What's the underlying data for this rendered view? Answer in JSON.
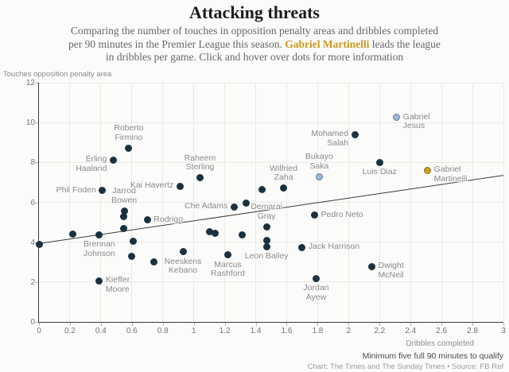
{
  "header": {
    "title": "Attacking threats",
    "subtitle_before": "Comparing the number of touches in opposition penalty areas and dribbles completed per 90 minutes in the Premier League this season. ",
    "subtitle_highlight": "Gabriel Martinelli",
    "subtitle_after": " leads the league in dribbles per game. Click and hover over dots for more information",
    "highlight_color": "#c8991e"
  },
  "footer": {
    "note": "Minimum five full 90 minutes to qualify",
    "credit": "Chart: The Times and The Sunday Times • Source: FB Ref"
  },
  "chart_data": {
    "type": "scatter",
    "xlabel": "Dribbles completed",
    "ylabel": "Touches opposition penalty area",
    "xlim": [
      0,
      3
    ],
    "ylim": [
      0,
      12
    ],
    "x_ticks": [
      "0",
      "0.2",
      "0.4",
      "0.6",
      "0.8",
      "1",
      "1.2",
      "1.4",
      "1.6",
      "1.8",
      "2",
      "2.2",
      "2.4",
      "2.6",
      "2.8",
      "3"
    ],
    "y_ticks": [
      "0",
      "2",
      "4",
      "6",
      "8",
      "10",
      "12"
    ],
    "grid": true,
    "trend_line": {
      "x1": 0,
      "y1": 3.93,
      "x2": 3,
      "y2": 7.35
    },
    "colors": {
      "dot_default": "#1a3240",
      "dot_blue_fill": "#9db8d2",
      "dot_blue_border": "#5f7d99",
      "dot_gold_fill": "#c9a227",
      "dot_gold_border": "#8a6d1a",
      "trend_line": "#3c3c3c",
      "grid": "#e9e9e6",
      "axis": "#3a3a3a",
      "label_text": "#8a8a8a"
    },
    "points": [
      {
        "player": "Roberto Firmino",
        "x": 0.58,
        "y": 8.73,
        "dot": "dark",
        "label_pos": "above",
        "label_lines": [
          "Roberto",
          "Firmino"
        ]
      },
      {
        "player": "Erling Haaland",
        "x": 0.48,
        "y": 8.12,
        "dot": "dark",
        "label_pos": "left",
        "label_lines": [
          "Erling",
          "Haaland"
        ]
      },
      {
        "player": "Phil Foden",
        "x": 0.41,
        "y": 6.58,
        "dot": "dark",
        "label_pos": "left",
        "label_lines": [
          "Phil Foden"
        ]
      },
      {
        "player": "Jarrod Bowen",
        "x": 0.55,
        "y": 5.58,
        "dot": "dark",
        "label_pos": "above",
        "label_lines": [
          "Jarrod",
          "Bowen"
        ]
      },
      {
        "player": "Rodrigo",
        "x": 0.7,
        "y": 5.12,
        "dot": "dark",
        "label_pos": "right",
        "label_lines": [
          "Rodrigo"
        ]
      },
      {
        "player": "Kai Havertz",
        "x": 0.91,
        "y": 6.8,
        "dot": "dark",
        "label_pos": "left",
        "label_lines": [
          "Kai Havertz"
        ]
      },
      {
        "player": "Raheem Sterling",
        "x": 1.04,
        "y": 7.22,
        "dot": "dark",
        "label_pos": "above",
        "label_lines": [
          "Raheem",
          "Sterling"
        ]
      },
      {
        "player": "Brennan Johnson",
        "x": 0.39,
        "y": 4.38,
        "dot": "dark",
        "label_pos": "below",
        "label_lines": [
          "Brennan",
          "Johnson"
        ]
      },
      {
        "player": "Kieffer Moore",
        "x": 0.39,
        "y": 2.06,
        "dot": "dark",
        "label_pos": "right",
        "label_lines": [
          "Kieffer",
          "Moore"
        ]
      },
      {
        "player": "Neeskens Kebano",
        "x": 0.93,
        "y": 3.52,
        "dot": "dark",
        "label_pos": "below",
        "label_lines": [
          "Neeskens",
          "Kebano"
        ]
      },
      {
        "player": "Marcus Rashford",
        "x": 1.22,
        "y": 3.35,
        "dot": "dark",
        "label_pos": "below",
        "label_lines": [
          "Marcus",
          "Rashford"
        ]
      },
      {
        "player": "Che Adams",
        "x": 1.26,
        "y": 5.78,
        "dot": "dark",
        "label_pos": "left",
        "label_lines": [
          "Che Adams"
        ]
      },
      {
        "player": "Demarai Gray",
        "x": 1.47,
        "y": 4.78,
        "dot": "dark",
        "label_pos": "above",
        "label_lines": [
          "Demarai",
          "Gray"
        ]
      },
      {
        "player": "Leon Bailey",
        "x": 1.47,
        "y": 3.78,
        "dot": "dark",
        "label_pos": "below",
        "label_lines": [
          "Leon Bailey"
        ]
      },
      {
        "player": "Wilfried Zaha",
        "x": 1.58,
        "y": 6.7,
        "dot": "dark",
        "label_pos": "above",
        "label_lines": [
          "Wilfried",
          "Zaha"
        ]
      },
      {
        "player": "Bukayo Saka",
        "x": 1.81,
        "y": 7.28,
        "dot": "blue",
        "label_pos": "above",
        "label_lines": [
          "Bukayo",
          "Saka"
        ]
      },
      {
        "player": "Pedro Neto",
        "x": 1.78,
        "y": 5.35,
        "dot": "dark",
        "label_pos": "right",
        "label_lines": [
          "Pedro Neto"
        ]
      },
      {
        "player": "Jack Harrison",
        "x": 1.7,
        "y": 3.74,
        "dot": "dark",
        "label_pos": "right",
        "label_lines": [
          "Jack Harrison"
        ]
      },
      {
        "player": "Jordan Ayew",
        "x": 1.79,
        "y": 2.19,
        "dot": "dark",
        "label_pos": "below",
        "label_lines": [
          "Jordan",
          "Ayew"
        ]
      },
      {
        "player": "Dwight McNeil",
        "x": 2.15,
        "y": 2.79,
        "dot": "dark",
        "label_pos": "right",
        "label_lines": [
          "Dwight",
          "McNeil"
        ]
      },
      {
        "player": "Mohamed Salah",
        "x": 2.04,
        "y": 9.4,
        "dot": "dark",
        "label_pos": "left",
        "label_lines": [
          "Mohamed",
          "Salah"
        ]
      },
      {
        "player": "Gabriel Jesus",
        "x": 2.31,
        "y": 10.25,
        "dot": "blue",
        "label_pos": "right",
        "label_lines": [
          "Gabriel",
          "Jesus"
        ]
      },
      {
        "player": "Luis Diaz",
        "x": 2.2,
        "y": 8.01,
        "dot": "dark",
        "label_pos": "below",
        "label_lines": [
          "Luis Diaz"
        ]
      },
      {
        "player": "Gabriel Martinelli",
        "x": 2.51,
        "y": 7.61,
        "dot": "gold",
        "label_pos": "right",
        "label_lines": [
          "Gabriel",
          "Martinelli"
        ]
      },
      {
        "player": "",
        "x": 0.0,
        "y": 3.9,
        "dot": "dark",
        "label_pos": "none",
        "label_lines": []
      },
      {
        "player": "",
        "x": 0.22,
        "y": 4.42,
        "dot": "dark",
        "label_pos": "none",
        "label_lines": []
      },
      {
        "player": "",
        "x": 0.545,
        "y": 4.67,
        "dot": "dark",
        "label_pos": "none",
        "label_lines": []
      },
      {
        "player": "",
        "x": 0.545,
        "y": 5.29,
        "dot": "dark",
        "label_pos": "none",
        "label_lines": []
      },
      {
        "player": "",
        "x": 0.61,
        "y": 4.05,
        "dot": "dark",
        "label_pos": "none",
        "label_lines": []
      },
      {
        "player": "",
        "x": 0.6,
        "y": 3.29,
        "dot": "dark",
        "label_pos": "none",
        "label_lines": []
      },
      {
        "player": "",
        "x": 0.74,
        "y": 3.01,
        "dot": "dark",
        "label_pos": "none",
        "label_lines": []
      },
      {
        "player": "",
        "x": 1.1,
        "y": 4.52,
        "dot": "dark",
        "label_pos": "none",
        "label_lines": []
      },
      {
        "player": "",
        "x": 1.14,
        "y": 4.44,
        "dot": "dark",
        "label_pos": "none",
        "label_lines": []
      },
      {
        "player": "",
        "x": 1.31,
        "y": 4.38,
        "dot": "dark",
        "label_pos": "none",
        "label_lines": []
      },
      {
        "player": "",
        "x": 1.34,
        "y": 5.98,
        "dot": "dark",
        "label_pos": "none",
        "label_lines": []
      },
      {
        "player": "",
        "x": 1.44,
        "y": 6.62,
        "dot": "dark",
        "label_pos": "none",
        "label_lines": []
      },
      {
        "player": "",
        "x": 1.47,
        "y": 4.1,
        "dot": "dark",
        "label_pos": "none",
        "label_lines": []
      }
    ]
  }
}
